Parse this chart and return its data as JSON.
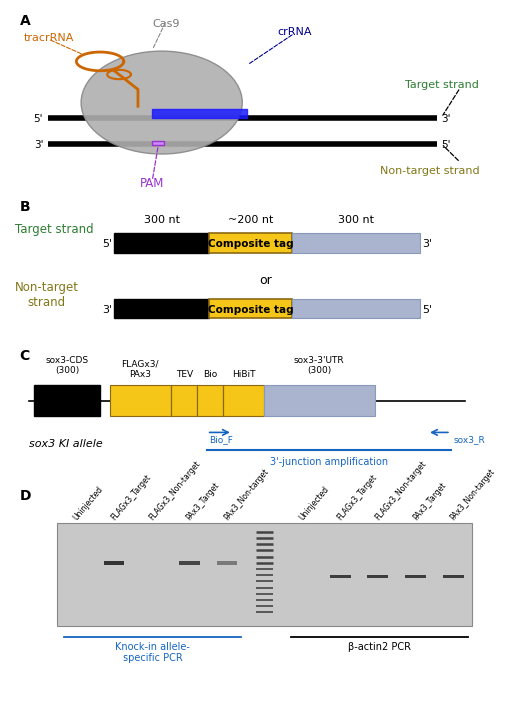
{
  "panel_labels": [
    "A",
    "B",
    "C",
    "D"
  ],
  "panel_label_color": "black",
  "panel_label_fontsize": 10,
  "panel_label_fontweight": "bold",
  "fig_bg": "white",
  "panelA": {
    "cas9_label": "Cas9",
    "cas9_color": "#b0b0b0",
    "tracr_label": "tracrRNA",
    "tracr_color": "#cc6600",
    "cr_label": "crRNA",
    "cr_color": "#00008B",
    "pam_label": "PAM",
    "pam_color": "#9933cc",
    "target_label": "Target strand",
    "target_color": "#2e7d32",
    "nontarget_label": "Non-target strand",
    "nontarget_color": "#827717"
  },
  "panelB": {
    "label_300nt_1": "300 nt",
    "label_200nt": "~200 nt",
    "label_300nt_2": "300 nt",
    "label_or": "or",
    "target_strand_label": "Target strand",
    "target_strand_color": "#2e7d32",
    "nontarget_strand_label": "Non-target\nstrand",
    "nontarget_strand_color": "#827717",
    "composite_tag_label": "Composite tag",
    "composite_tag_fill": "#f5c518",
    "composite_tag_edge": "#8B6914",
    "blue_fill": "#aab4cf",
    "five_prime_top": "5'",
    "three_prime_top": "3'",
    "three_prime_bot": "3'",
    "five_prime_bot": "5'"
  },
  "panelC": {
    "sox3cds_label": "sox3-CDS\n(300)",
    "sox3utr_label": "sox3-3'UTR\n(300)",
    "flagx3_label": "FLAGx3/\nPAx3",
    "tev_label": "TEV",
    "bio_label": "Bio",
    "hibit_label": "HiBiT",
    "ki_allele_label": "sox3 KI allele",
    "bio_f_label": "Bio_F",
    "sox3_r_label": "sox3_R",
    "junction_label": "3'-junction amplification",
    "arrow_color": "#1565c0",
    "yellow_fill": "#f5c518",
    "blue_fill": "#aab4cf",
    "line_color": "#1565c0"
  },
  "panelD": {
    "lane_labels_left": [
      "Uninjected",
      "FLAGx3_Target",
      "FLAGx3_Non-target",
      "PAx3_Target",
      "PAx3_Non-target"
    ],
    "lane_labels_right": [
      "Uninjected",
      "FLAGx3_Target",
      "FLAGx3_Non-target",
      "PAx3_Target",
      "PAx3_Non-target"
    ],
    "gel_bg": "#c8c8c8",
    "ki_pcr_label": "Knock-in allele-\nspecific PCR",
    "ki_pcr_color": "#1565c0",
    "bactin_label": "β-actin2 PCR",
    "bactin_color": "black",
    "label_color": "#1565c0"
  }
}
